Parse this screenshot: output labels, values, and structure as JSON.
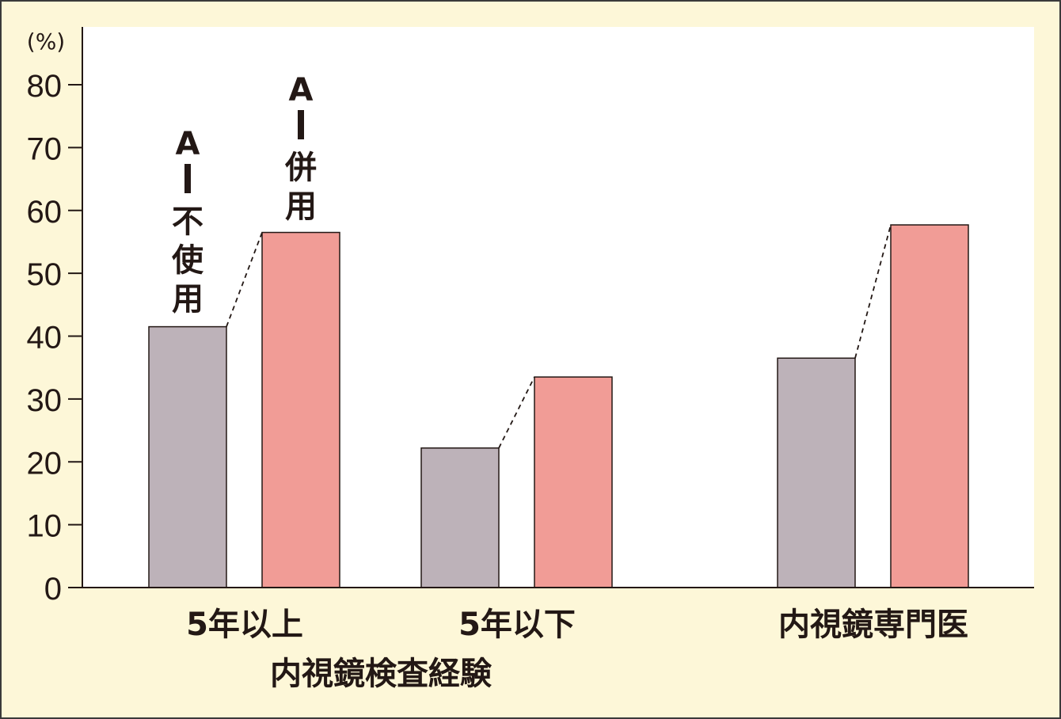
{
  "chart_data": {
    "type": "bar",
    "unit_label": "(%)",
    "ylim": [
      0,
      80
    ],
    "yticks": [
      "0",
      "10",
      "20",
      "30",
      "40",
      "50",
      "60",
      "70",
      "80"
    ],
    "categories": [
      "5年以上",
      "5年以下",
      "内視鏡専門医"
    ],
    "group_label": "内視鏡検査経験",
    "grid": false,
    "series": [
      {
        "name": "AI不使用",
        "label_lines": [
          "A",
          "I",
          "不",
          "使",
          "用"
        ],
        "color": "#bdb2b9",
        "values": [
          41.5,
          22.2,
          36.5
        ]
      },
      {
        "name": "AI併用",
        "label_lines": [
          "A",
          "I",
          "併",
          "用"
        ],
        "color": "#f19c96",
        "values": [
          56.5,
          33.5,
          57.7
        ]
      }
    ],
    "colors": {
      "background": "#fdf7d8",
      "plot_background": "#ffffff",
      "axis": "#231815"
    }
  }
}
